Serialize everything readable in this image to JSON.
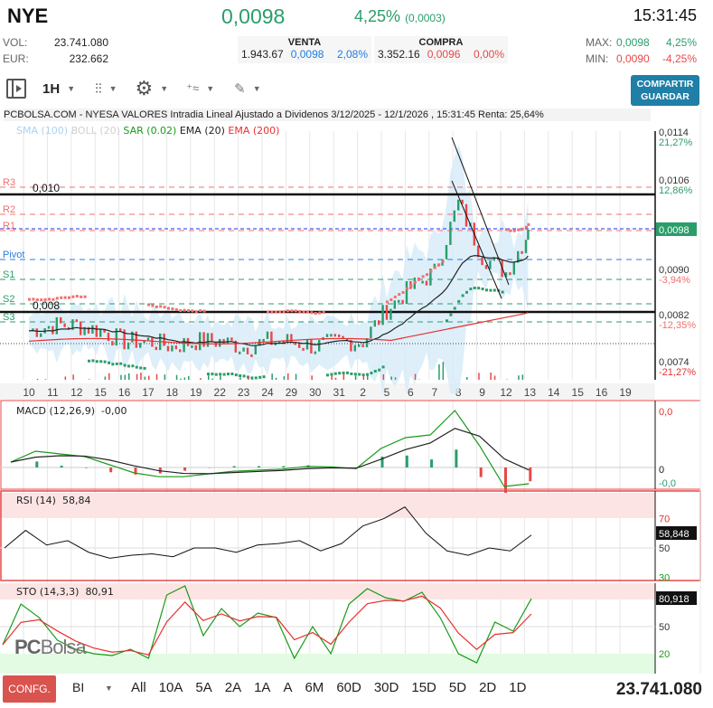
{
  "header": {
    "symbol": "NYE",
    "price": "0,0098",
    "change_pct": "4,25%",
    "change_abs": "(0,0003)",
    "time": "15:31:45"
  },
  "stats": {
    "vol_label": "VOL:",
    "vol": "23.741.080",
    "eur_label": "EUR:",
    "eur": "232.662",
    "max_label": "MAX:",
    "max": "0,0098",
    "max_pct": "4,25%",
    "min_label": "MIN:",
    "min": "0,0090",
    "min_pct": "-4,25%"
  },
  "venta": {
    "title": "VENTA",
    "qty": "1.943.67",
    "price": "0,0098",
    "pct": "2,08%"
  },
  "compra": {
    "title": "COMPRA",
    "qty": "3.352.16",
    "price": "0,0096",
    "pct": "0,00%"
  },
  "toolbar": {
    "interval": "1H",
    "share": "COMPARTIR",
    "save": "GUARDAR",
    "icons": [
      "panel-toggle-icon",
      "candlestick-icon",
      "gear-icon",
      "indicators-icon",
      "drawing-pencil-icon"
    ]
  },
  "chart": {
    "title": "PCBOLSA.COM - NYESA VALORES Intradia Lineal Ajustado a Dividenos 3/12/2025 - 12/1/2026 , 15:31:45 Renta: 25,64%",
    "legend": [
      {
        "t": "SMA (100)",
        "c": "#a9d3f5"
      },
      {
        "t": "BOLL (20)",
        "c": "#d0d0d0"
      },
      {
        "t": "SAR (0.02)",
        "c": "#1a9a1a"
      },
      {
        "t": "EMA (20)",
        "c": "#222222"
      },
      {
        "t": "EMA (200)",
        "c": "#e83030"
      }
    ],
    "levels": [
      {
        "t": "R3",
        "c": "#f07070"
      },
      {
        "t": "R2",
        "c": "#f07070"
      },
      {
        "t": "R1",
        "c": "#f07070"
      },
      {
        "t": "Pivot",
        "c": "#2b7de0"
      },
      {
        "t": "S1",
        "c": "#2a9d6a"
      },
      {
        "t": "S2",
        "c": "#2a9d6a"
      },
      {
        "t": "S3",
        "c": "#2a9d6a"
      }
    ],
    "round_levels": [
      "0,010",
      "0,008"
    ],
    "axis": [
      {
        "p": "0,0114",
        "pct": "21,27%",
        "pc": "#2a9d6a"
      },
      {
        "p": "0,0106",
        "pct": "12,86%",
        "pc": "#2a9d6a"
      },
      {
        "p": "0,0090",
        "pct": "-3,94%",
        "pc": "#f07070"
      },
      {
        "p": "0,0082",
        "pct": "-12,35%",
        "pc": "#f07070"
      },
      {
        "p": "0,0074",
        "pct": "-21,27%",
        "pc": "#e83030"
      }
    ],
    "current": "0,0098",
    "dates": [
      "10",
      "11",
      "12",
      "15",
      "16",
      "17",
      "18",
      "19",
      "22",
      "23",
      "24",
      "29",
      "30",
      "31",
      "2",
      "5",
      "6",
      "7",
      "8",
      "9",
      "12",
      "13",
      "14",
      "15",
      "16",
      "19"
    ]
  },
  "chart_data": {
    "type": "line",
    "price_close_approx": [
      0.0079,
      0.008,
      0.008,
      0.0079,
      0.0077,
      0.0077,
      0.0076,
      0.0077,
      0.0077,
      0.0076,
      0.0077,
      0.0077,
      0.0076,
      0.0077,
      0.0077,
      0.0083,
      0.0087,
      0.009,
      0.0103,
      0.0093,
      0.009,
      0.0098
    ],
    "macd": {
      "label": "MACD (12,26,9)",
      "value": "-0,00",
      "axis": [
        "0,0",
        "0",
        "-0,0"
      ],
      "values": [
        0.1,
        0.3,
        0.25,
        0.2,
        0.05,
        -0.1,
        -0.17,
        -0.17,
        -0.12,
        -0.07,
        -0.05,
        -0.03,
        0.02,
        0.01,
        -0.02,
        0.35,
        0.55,
        0.6,
        1.05,
        0.4,
        -0.35,
        -0.3
      ]
    },
    "rsi": {
      "label": "RSI (14)",
      "value": "58,84",
      "current": "58,848",
      "axis": [
        "70",
        "50",
        "30"
      ],
      "values": [
        50,
        62,
        52,
        55,
        47,
        43,
        45,
        46,
        44,
        50,
        50,
        47,
        52,
        53,
        55,
        48,
        53,
        65,
        70,
        78,
        60,
        48,
        45,
        50,
        48,
        58.8
      ]
    },
    "sto": {
      "label": "STO (14,3,3)",
      "value": "80,91",
      "current": "80,918",
      "axis": [
        "50",
        "20"
      ],
      "values": [
        30,
        75,
        60,
        35,
        25,
        20,
        18,
        25,
        15,
        85,
        95,
        40,
        70,
        50,
        65,
        60,
        15,
        50,
        20,
        75,
        92,
        82,
        78,
        88,
        60,
        20,
        10,
        55,
        45,
        80.9
      ]
    }
  },
  "bottom": {
    "config": "CONFG.",
    "mode": "BI",
    "ranges": [
      "All",
      "10A",
      "5A",
      "2A",
      "1A",
      "A",
      "6M",
      "60D",
      "30D",
      "15D",
      "5D",
      "2D",
      "1D"
    ],
    "volume": "23.741.080"
  },
  "logo": "PCBolsa"
}
